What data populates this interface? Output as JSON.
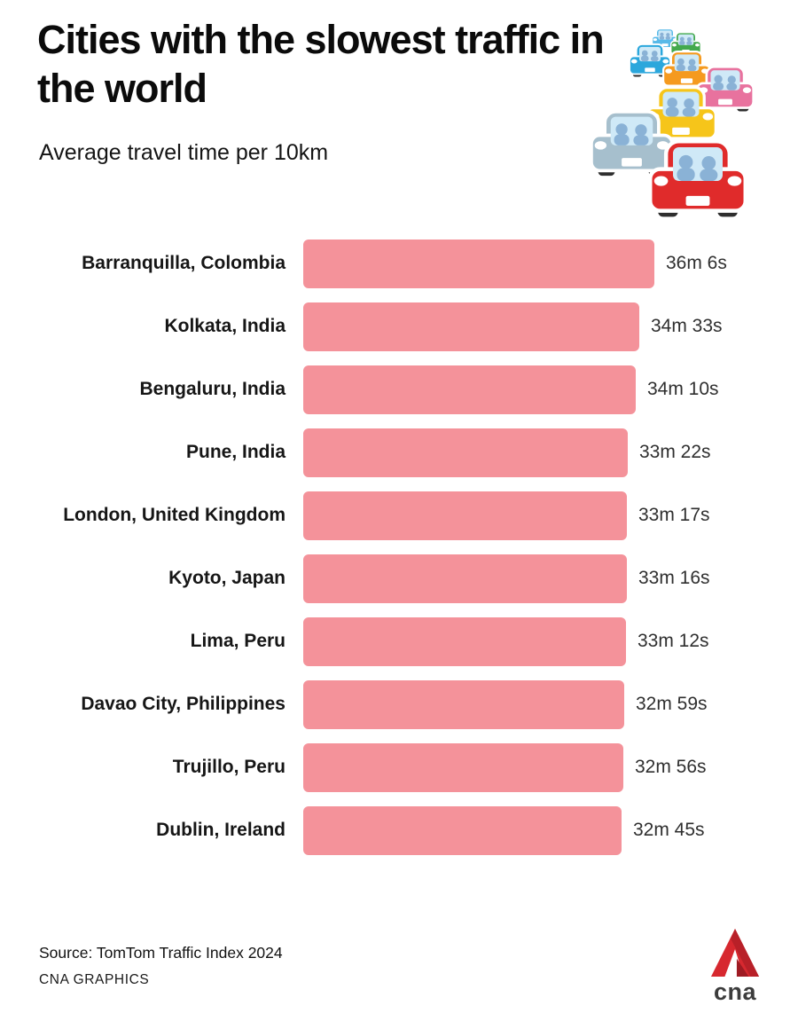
{
  "header": {
    "title": "Cities with the slowest traffic in the world",
    "subtitle": "Average travel time per 10km"
  },
  "chart_data": {
    "type": "bar",
    "orientation": "horizontal",
    "title": "Cities with the slowest traffic in the world",
    "subtitle": "Average travel time per 10km",
    "categories": [
      "Barranquilla, Colombia",
      "Kolkata, India",
      "Bengaluru, India",
      "Pune, India",
      "London, United Kingdom",
      "Kyoto, Japan",
      "Lima, Peru",
      "Davao City, Philippines",
      "Trujillo, Peru",
      "Dublin, Ireland"
    ],
    "value_labels": [
      "36m 6s",
      "34m 33s",
      "34m 10s",
      "33m 22s",
      "33m 17s",
      "33m 16s",
      "33m 12s",
      "32m 59s",
      "32m 56s",
      "32m 45s"
    ],
    "values_seconds": [
      2166,
      2073,
      2050,
      2002,
      1997,
      1996,
      1992,
      1979,
      1976,
      1965
    ],
    "unit": "average travel time per 10 km",
    "xlim": [
      0,
      2166
    ],
    "bar_color": "#f4929a",
    "grid": false,
    "legend": false
  },
  "illustration": {
    "name": "traffic-jam-cars-icon",
    "car_colors": [
      "#58b9e8",
      "#43a94e",
      "#2ba7dc",
      "#f59a1f",
      "#e8729e",
      "#f6c51a",
      "#a6bfcd",
      "#e02b2b"
    ]
  },
  "footer": {
    "source": "Source: TomTom Traffic Index 2024",
    "credit": "CNA GRAPHICS"
  },
  "logo": {
    "label": "cna",
    "accent_red": "#d7282f",
    "accent_dark_red": "#9e1b23"
  }
}
